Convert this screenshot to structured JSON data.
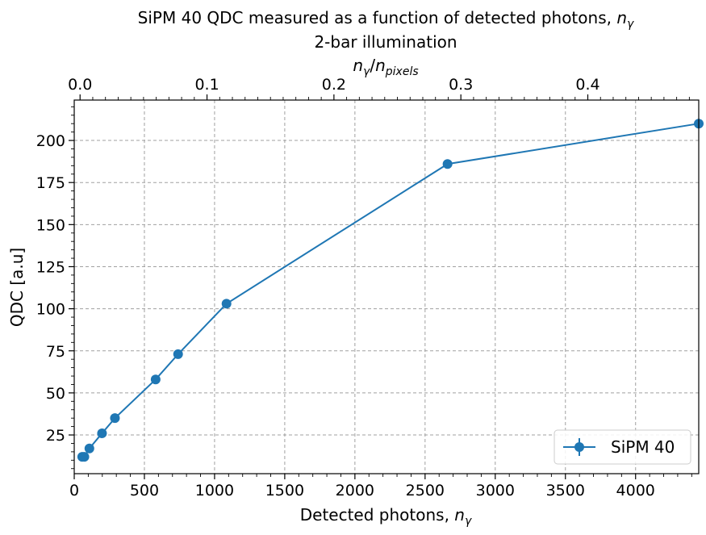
{
  "chart_data": {
    "type": "line",
    "title_main": "SiPM 40 QDC measured as a function of detected photons, ",
    "title_main_symbol": "n",
    "title_main_sub": "γ",
    "subtitle": "2-bar illumination",
    "top_axis_label": {
      "n": "n",
      "n_sub": "γ",
      "slash": "/",
      "d": "n",
      "d_sub": "pixels"
    },
    "xlabel": {
      "text": "Detected photons, ",
      "symbol": "n",
      "sub": "γ"
    },
    "ylabel": "QDC [a.u]",
    "xlim": [
      0,
      4450
    ],
    "ylim": [
      2,
      224
    ],
    "x_ticks": [
      0,
      500,
      1000,
      1500,
      2000,
      2500,
      3000,
      3500,
      4000
    ],
    "y_ticks": [
      25,
      50,
      75,
      100,
      125,
      150,
      175,
      200
    ],
    "top_axis": {
      "ticks": [
        0.0,
        0.1,
        0.2,
        0.3,
        0.4
      ],
      "tick_labels": [
        "0.0",
        "0.1",
        "0.2",
        "0.3",
        "0.4"
      ],
      "xlim": [
        -0.0046,
        0.4874
      ]
    },
    "grid": true,
    "legend_position": "bottom-right",
    "colors": {
      "series": "#1f77b4",
      "grid": "#a0a0a0"
    },
    "series": [
      {
        "name": "SiPM 40",
        "x": [
          57,
          72,
          108,
          198,
          290,
          580,
          740,
          1085,
          2660,
          4450
        ],
        "y": [
          12,
          12,
          17,
          26,
          35,
          58,
          73,
          103,
          186,
          210
        ],
        "y_err": [
          0.5,
          0.5,
          0.6,
          0.8,
          0.9,
          1.0,
          1.1,
          1.3,
          2.2,
          1.8
        ]
      }
    ]
  }
}
